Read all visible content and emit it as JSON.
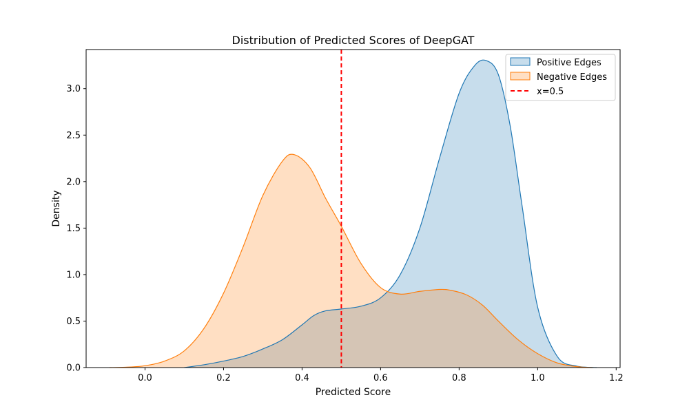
{
  "chart_data": {
    "type": "area",
    "title": "Distribution of Predicted Scores of DeepGAT",
    "xlabel": "Predicted Score",
    "ylabel": "Density",
    "xlim": [
      -0.15,
      1.21
    ],
    "ylim": [
      0,
      3.42
    ],
    "xticks": [
      "0.0",
      "0.2",
      "0.4",
      "0.6",
      "0.8",
      "1.0",
      "1.2"
    ],
    "xtick_values": [
      0.0,
      0.2,
      0.4,
      0.6,
      0.8,
      1.0,
      1.2
    ],
    "yticks": [
      "0.0",
      "0.5",
      "1.0",
      "1.5",
      "2.0",
      "2.5",
      "3.0"
    ],
    "ytick_values": [
      0.0,
      0.5,
      1.0,
      1.5,
      2.0,
      2.5,
      3.0
    ],
    "grid": false,
    "legend_position": "top-right",
    "series": [
      {
        "name": "Positive Edges",
        "color": "#1f77b4",
        "x": [
          0.1,
          0.15,
          0.2,
          0.25,
          0.3,
          0.35,
          0.4,
          0.43,
          0.46,
          0.5,
          0.55,
          0.6,
          0.65,
          0.7,
          0.75,
          0.8,
          0.84,
          0.87,
          0.9,
          0.93,
          0.96,
          1.0,
          1.05,
          1.1,
          1.15
        ],
        "y": [
          0.0,
          0.03,
          0.07,
          0.12,
          0.2,
          0.3,
          0.46,
          0.56,
          0.61,
          0.63,
          0.66,
          0.75,
          1.0,
          1.5,
          2.25,
          2.95,
          3.25,
          3.3,
          3.15,
          2.6,
          1.75,
          0.65,
          0.12,
          0.015,
          0.0
        ]
      },
      {
        "name": "Negative Edges",
        "color": "#ff7f0e",
        "x": [
          -0.09,
          -0.05,
          0.0,
          0.05,
          0.1,
          0.15,
          0.2,
          0.25,
          0.3,
          0.35,
          0.38,
          0.42,
          0.46,
          0.5,
          0.55,
          0.6,
          0.65,
          0.7,
          0.75,
          0.78,
          0.82,
          0.86,
          0.9,
          0.95,
          1.0,
          1.05,
          1.1,
          1.14
        ],
        "y": [
          0.0,
          0.004,
          0.02,
          0.07,
          0.18,
          0.42,
          0.8,
          1.3,
          1.85,
          2.22,
          2.29,
          2.15,
          1.82,
          1.52,
          1.12,
          0.86,
          0.79,
          0.82,
          0.84,
          0.83,
          0.78,
          0.67,
          0.5,
          0.3,
          0.15,
          0.05,
          0.01,
          0.0
        ]
      }
    ],
    "reference_line": {
      "x": 0.5,
      "label": "x=0.5",
      "color": "#ff0000",
      "style": "dashed"
    }
  }
}
